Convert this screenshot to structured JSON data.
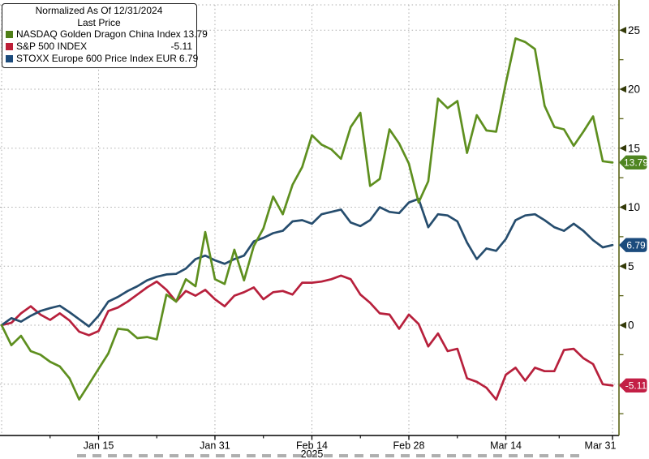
{
  "legend": {
    "title": "Normalized As Of 12/31/2024",
    "subtitle": "Last Price",
    "entries": [
      {
        "label": "NASDAQ Golden Dragon China Index",
        "value": "13.79",
        "color": "#4e7e17"
      },
      {
        "label": "S&P 500 INDEX",
        "value": "-5.11",
        "color": "#bd1f38"
      },
      {
        "label": "STOXX Europe 600 Price Index EUR",
        "value": "6.79",
        "color": "#1c4b7c"
      }
    ]
  },
  "colors": {
    "axis": "#5c6418",
    "tick_arrow": "#333a08",
    "grid": "#aeaeae",
    "text": "#000000",
    "plot_background": "#ffffff"
  },
  "x_axis": {
    "tick_labels": [
      "Jan 15",
      "Jan 31",
      "Feb 14",
      "Feb 28",
      "Mar 14",
      "Mar 31"
    ],
    "year_label": "2025"
  },
  "y_axis": {
    "tick_labels": [
      "25",
      "20",
      "15",
      "10",
      "5",
      "0",
      "-5"
    ]
  },
  "badges": [
    {
      "text": "13.79",
      "color": "#4f8521"
    },
    {
      "text": "6.79",
      "color": "#1b4b7d"
    },
    {
      "text": "-5.11",
      "color": "#c31f45"
    }
  ],
  "chart_data": {
    "type": "line",
    "title": "Normalized As Of 12/31/2024 — Last Price",
    "x": [
      "12/31",
      "1/2",
      "1/3",
      "1/6",
      "1/7",
      "1/8",
      "1/9",
      "1/10",
      "1/13",
      "1/14",
      "1/15",
      "1/16",
      "1/17",
      "1/20",
      "1/21",
      "1/22",
      "1/23",
      "1/24",
      "1/27",
      "1/28",
      "1/29",
      "1/30",
      "1/31",
      "2/3",
      "2/4",
      "2/5",
      "2/6",
      "2/7",
      "2/10",
      "2/11",
      "2/12",
      "2/13",
      "2/14",
      "2/17",
      "2/18",
      "2/19",
      "2/20",
      "2/21",
      "2/24",
      "2/25",
      "2/26",
      "2/27",
      "2/28",
      "3/3",
      "3/4",
      "3/5",
      "3/6",
      "3/7",
      "3/10",
      "3/11",
      "3/12",
      "3/13",
      "3/14",
      "3/17",
      "3/18",
      "3/19",
      "3/20",
      "3/21",
      "3/24",
      "3/25",
      "3/26",
      "3/27",
      "3/28",
      "3/31"
    ],
    "series": [
      {
        "name": "S&P 500 INDEX",
        "color": "#b7203c",
        "badge": "-5.11",
        "badge_color": "#c31f45",
        "last": -5.11,
        "values": [
          0,
          0.2,
          1.0,
          1.6,
          0.9,
          0.45,
          1.0,
          0.4,
          -0.55,
          -0.85,
          -0.5,
          1.2,
          1.5,
          2.0,
          2.6,
          3.2,
          3.7,
          3.0,
          2.0,
          2.9,
          2.5,
          3.0,
          2.2,
          1.6,
          2.5,
          2.8,
          3.2,
          2.2,
          2.8,
          2.9,
          2.6,
          3.6,
          3.6,
          3.7,
          3.9,
          4.2,
          3.9,
          2.6,
          1.9,
          1.0,
          0.9,
          -0.3,
          0.9,
          0.1,
          -1.8,
          -0.7,
          -2.2,
          -2.0,
          -4.5,
          -4.8,
          -5.3,
          -6.3,
          -4.2,
          -3.6,
          -4.7,
          -3.6,
          -3.9,
          -3.9,
          -2.1,
          -2.0,
          -2.8,
          -3.3,
          -5.0,
          -5.11
        ]
      },
      {
        "name": "STOXX Europe 600 Price Index EUR",
        "color": "#264d6e",
        "badge": "6.79",
        "badge_color": "#1b4b7d",
        "last": 6.79,
        "values": [
          0,
          0.6,
          0.3,
          0.8,
          1.2,
          1.45,
          1.65,
          1.1,
          0.5,
          -0.1,
          0.8,
          2.0,
          2.4,
          2.9,
          3.3,
          3.8,
          4.1,
          4.3,
          4.35,
          4.8,
          5.6,
          5.9,
          5.5,
          5.2,
          5.6,
          5.9,
          7.1,
          7.4,
          7.8,
          8.0,
          8.8,
          8.9,
          8.6,
          9.4,
          9.6,
          9.8,
          8.7,
          8.4,
          8.9,
          10.0,
          9.6,
          9.5,
          10.4,
          10.7,
          8.3,
          9.4,
          9.3,
          8.8,
          7.0,
          5.6,
          6.5,
          6.3,
          7.3,
          8.9,
          9.3,
          9.4,
          8.9,
          8.3,
          8.0,
          8.6,
          8.0,
          7.2,
          6.6,
          6.79
        ]
      },
      {
        "name": "NASDAQ Golden Dragon China Index",
        "color": "#5e8f1f",
        "badge": "13.79",
        "badge_color": "#4f8521",
        "last": 13.79,
        "values": [
          0,
          -1.7,
          -0.9,
          -2.2,
          -2.5,
          -3.1,
          -3.5,
          -4.5,
          -6.3,
          -5.0,
          -3.7,
          -2.4,
          -0.3,
          -0.4,
          -1.1,
          -1.0,
          -1.2,
          2.6,
          2.0,
          3.9,
          3.3,
          7.9,
          3.9,
          3.5,
          6.4,
          3.8,
          6.7,
          8.2,
          10.9,
          9.4,
          11.9,
          13.4,
          16.1,
          15.3,
          14.9,
          14.1,
          16.8,
          18.0,
          11.8,
          12.4,
          16.6,
          15.4,
          13.7,
          10.4,
          12.2,
          19.2,
          18.4,
          19.0,
          14.6,
          17.8,
          16.5,
          16.4,
          20.5,
          24.3,
          24.0,
          23.4,
          18.6,
          16.8,
          16.6,
          15.2,
          16.4,
          17.7,
          13.9,
          13.79
        ]
      }
    ],
    "yticks": [
      25,
      20,
      15,
      10,
      5,
      0,
      -5
    ],
    "y_minor_ticks": [
      22.5,
      17.5,
      12.5,
      7.5,
      2.5,
      -2.5,
      -7.5
    ],
    "ylim": [
      -9.3,
      27.2
    ],
    "xtick_dates": [
      "1/15",
      "1/31",
      "2/14",
      "2/28",
      "3/14",
      "3/31"
    ],
    "xtick_labels": [
      "Jan 15",
      "Jan 31",
      "Feb 14",
      "Feb 28",
      "Mar 14",
      "Mar 31"
    ],
    "year_label": "2025",
    "year_label_under": "2/14",
    "grid": true,
    "legend_position": "top-left",
    "ylabel": "",
    "xlabel": ""
  }
}
